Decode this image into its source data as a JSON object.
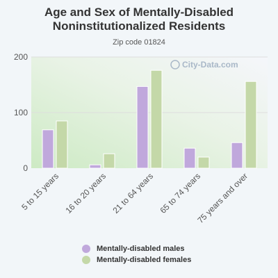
{
  "title_line1": "Age and Sex of Mentally-Disabled",
  "title_line2": "Noninstitutionalized Residents",
  "subtitle": "Zip code 01824",
  "watermark": "City-Data.com",
  "colors": {
    "males": "#c0a8dc",
    "females": "#c4d8a8",
    "axis_text": "#555555",
    "grid": "#dddddd"
  },
  "chart_data": {
    "type": "bar",
    "categories": [
      "5 to 15 years",
      "16 to 20 years",
      "21 to 64 years",
      "65 to 74 years",
      "75 years and over"
    ],
    "series": [
      {
        "name": "Mentally-disabled males",
        "values": [
          69,
          6,
          147,
          36,
          46
        ]
      },
      {
        "name": "Mentally-disabled females",
        "values": [
          85,
          26,
          176,
          20,
          156
        ]
      }
    ],
    "ylim": [
      0,
      200
    ],
    "yticks": [
      0,
      100,
      200
    ],
    "legend_position": "bottom",
    "grid": true
  }
}
